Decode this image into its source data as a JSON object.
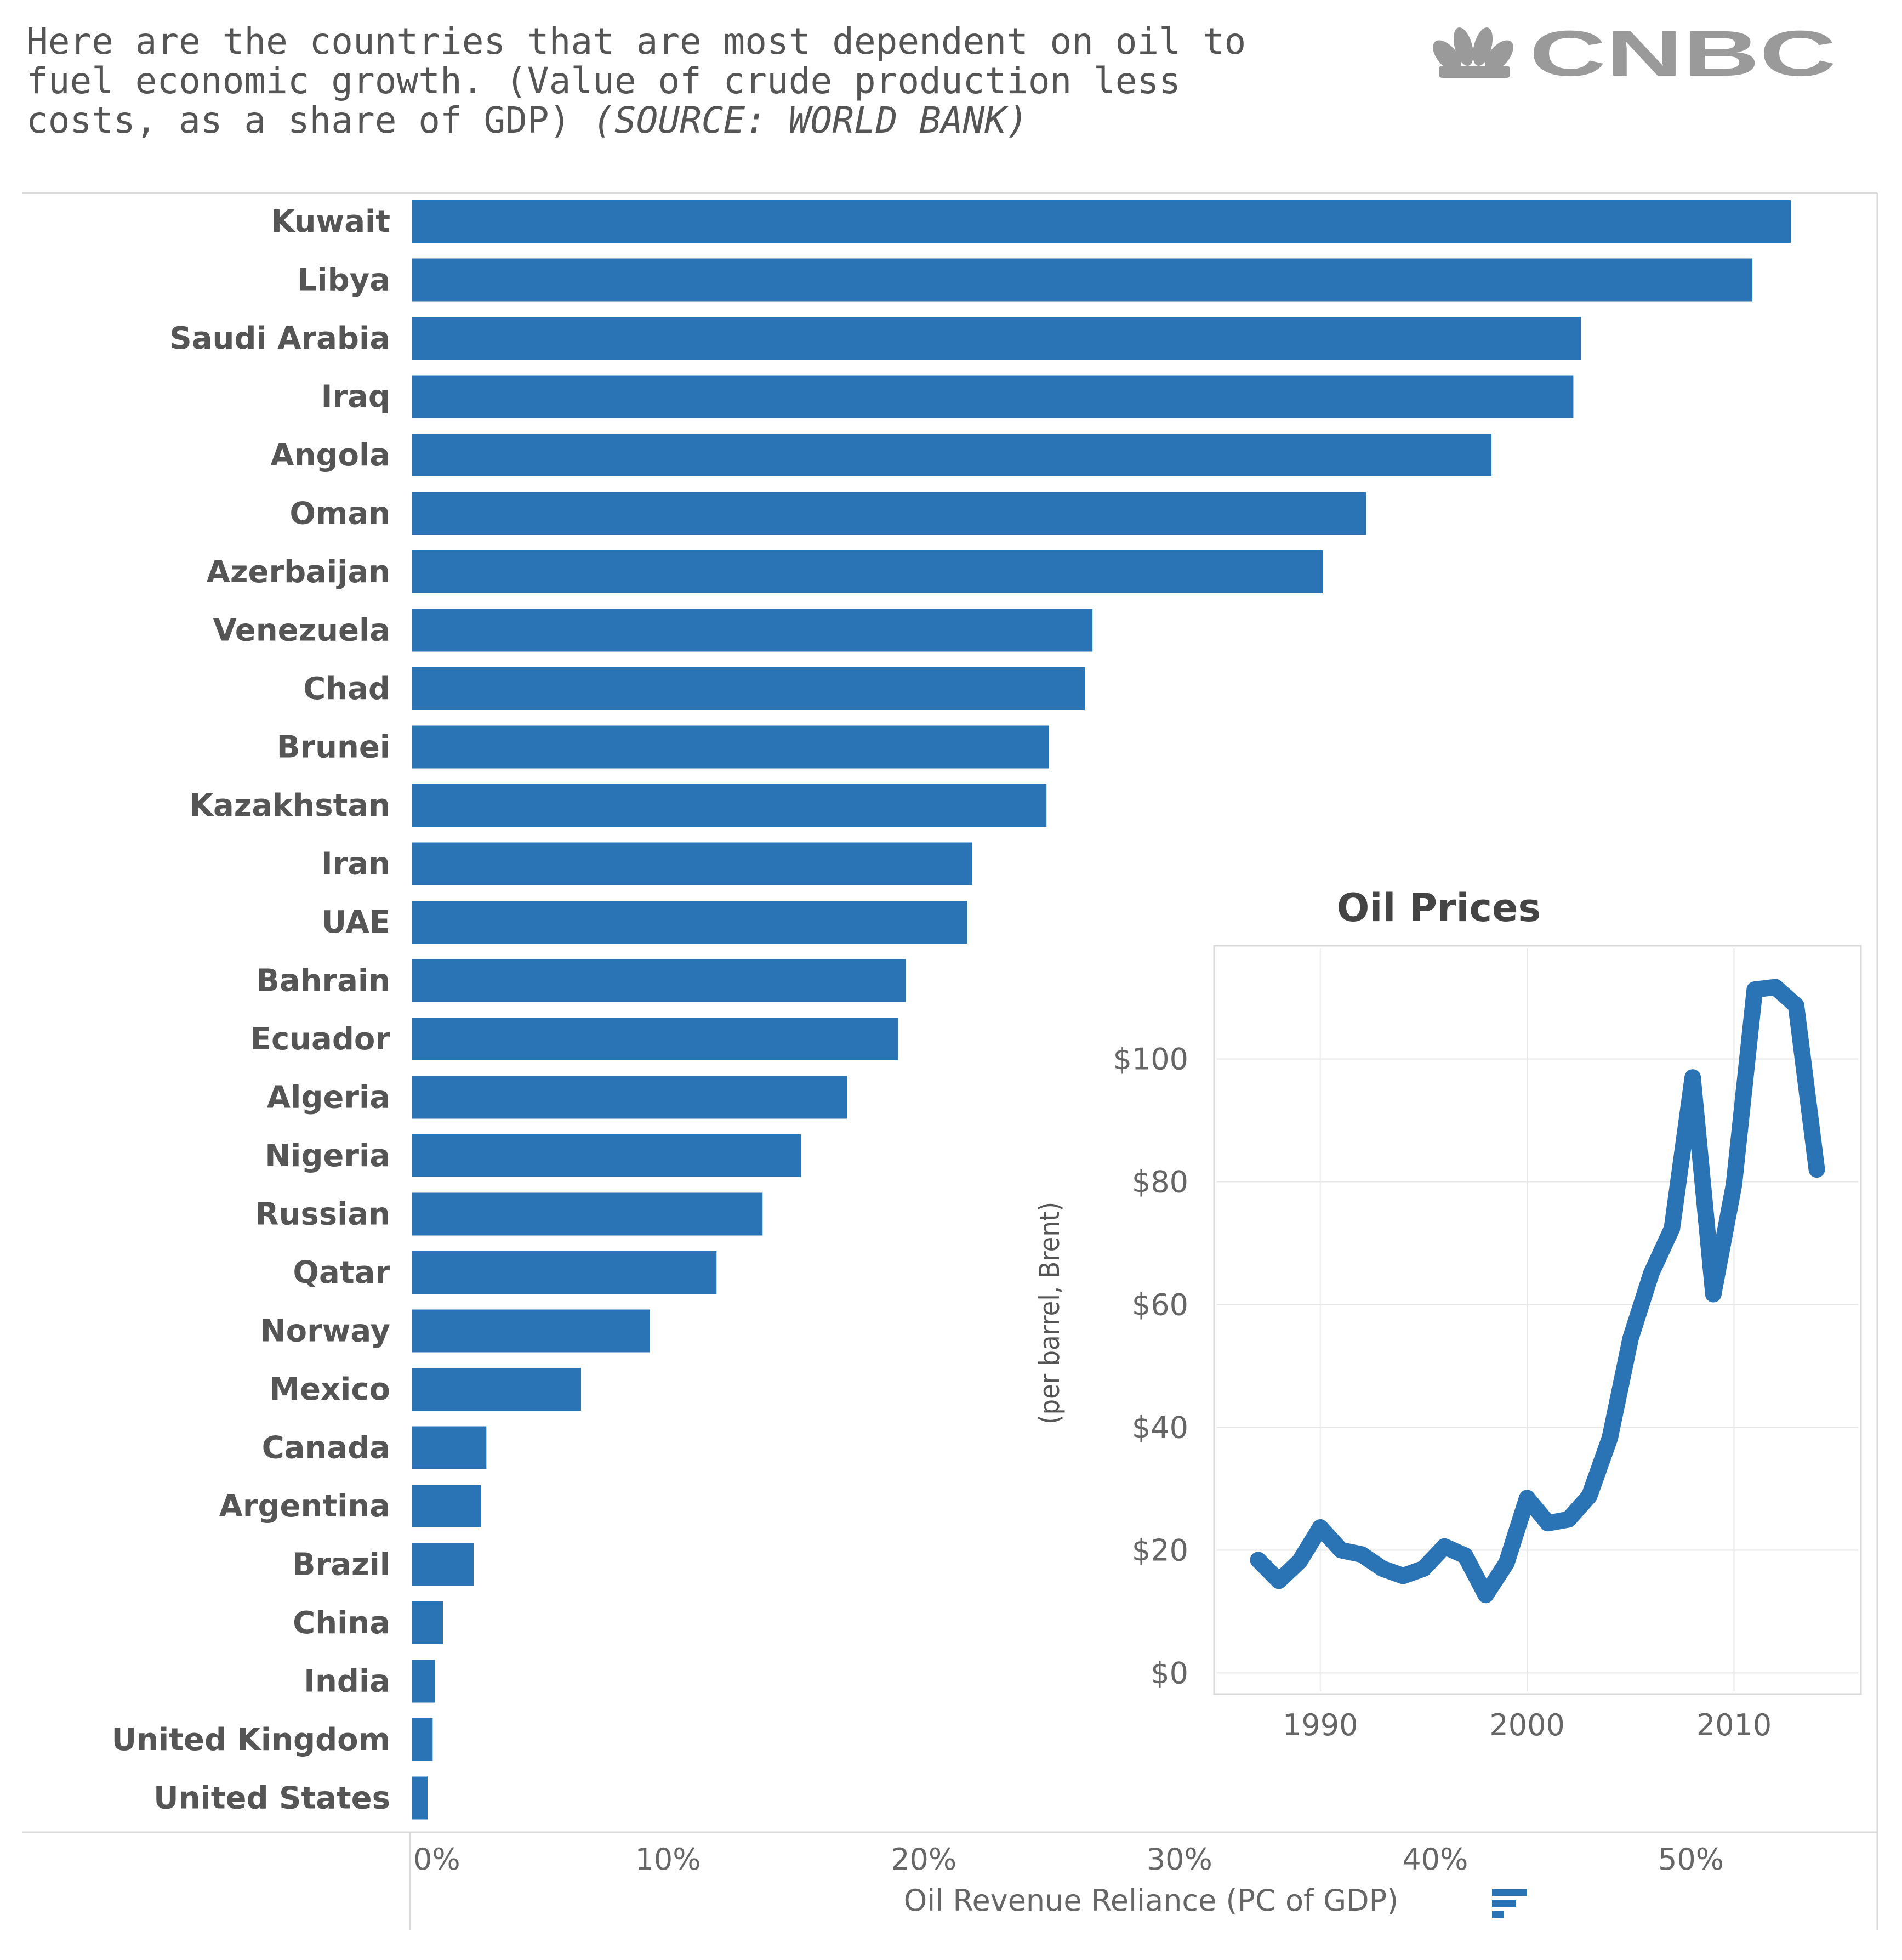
{
  "caption": {
    "line1": "Here are the countries that are most dependent on oil to",
    "line2": "fuel economic growth. (Value of crude production less",
    "line3": "costs, as a share of GDP) ",
    "source": "(SOURCE: WORLD BANK)"
  },
  "logo": {
    "text": "CNBC",
    "icon": "nbc-peacock-icon"
  },
  "colors": {
    "bar": "#2a73b5",
    "line": "#2a73b5",
    "grid": "#e6e6e6",
    "frame": "#d9d9d9"
  },
  "chart_data": [
    {
      "type": "bar",
      "orientation": "horizontal",
      "categories": [
        "Kuwait",
        "Libya",
        "Saudi Arabia",
        "Iraq",
        "Angola",
        "Oman",
        "Azerbaijan",
        "Venezuela",
        "Chad",
        "Brunei",
        "Kazakhstan",
        "Iran",
        "UAE",
        "Bahrain",
        "Ecuador",
        "Algeria",
        "Nigeria",
        "Russian",
        "Qatar",
        "Norway",
        "Mexico",
        "Canada",
        "Argentina",
        "Brazil",
        "China",
        "India",
        "United Kingdom",
        "United States"
      ],
      "values": [
        53.9,
        52.4,
        45.7,
        45.4,
        42.2,
        37.3,
        35.6,
        26.6,
        26.3,
        24.9,
        24.8,
        21.9,
        21.7,
        19.3,
        19.0,
        17.0,
        15.2,
        13.7,
        11.9,
        9.3,
        6.6,
        2.9,
        2.7,
        2.4,
        1.2,
        0.9,
        0.8,
        0.6
      ],
      "xlabel": "Oil Revenue Reliance (PC of GDP)",
      "xlim": [
        0,
        56
      ],
      "xticks": [
        0,
        10,
        20,
        30,
        40,
        50
      ],
      "xtick_labels": [
        "0%",
        "10%",
        "20%",
        "30%",
        "40%",
        "50%"
      ]
    },
    {
      "type": "line",
      "title": "Oil Prices",
      "ylabel": "(per barrel, Brent)",
      "x": [
        1987,
        1988,
        1989,
        1990,
        1991,
        1992,
        1993,
        1994,
        1995,
        1996,
        1997,
        1998,
        1999,
        2000,
        2001,
        2002,
        2003,
        2004,
        2005,
        2006,
        2007,
        2008,
        2009,
        2010,
        2011,
        2012,
        2013,
        2014
      ],
      "y": [
        18.4,
        15.0,
        18.2,
        23.7,
        20.0,
        19.3,
        17.0,
        15.8,
        17.0,
        20.6,
        19.1,
        12.7,
        17.9,
        28.5,
        24.4,
        25.0,
        28.8,
        38.3,
        54.5,
        65.1,
        72.4,
        97.0,
        61.7,
        79.6,
        111.3,
        111.7,
        108.7,
        82.0
      ],
      "xlim": [
        1985,
        2016
      ],
      "ylim": [
        -3,
        118
      ],
      "xticks": [
        1990,
        2000,
        2010
      ],
      "xtick_labels": [
        "1990",
        "2000",
        "2010"
      ],
      "yticks": [
        0,
        20,
        40,
        60,
        80,
        100
      ],
      "ytick_labels": [
        "$0",
        "$20",
        "$40",
        "$60",
        "$80",
        "$100"
      ]
    }
  ]
}
